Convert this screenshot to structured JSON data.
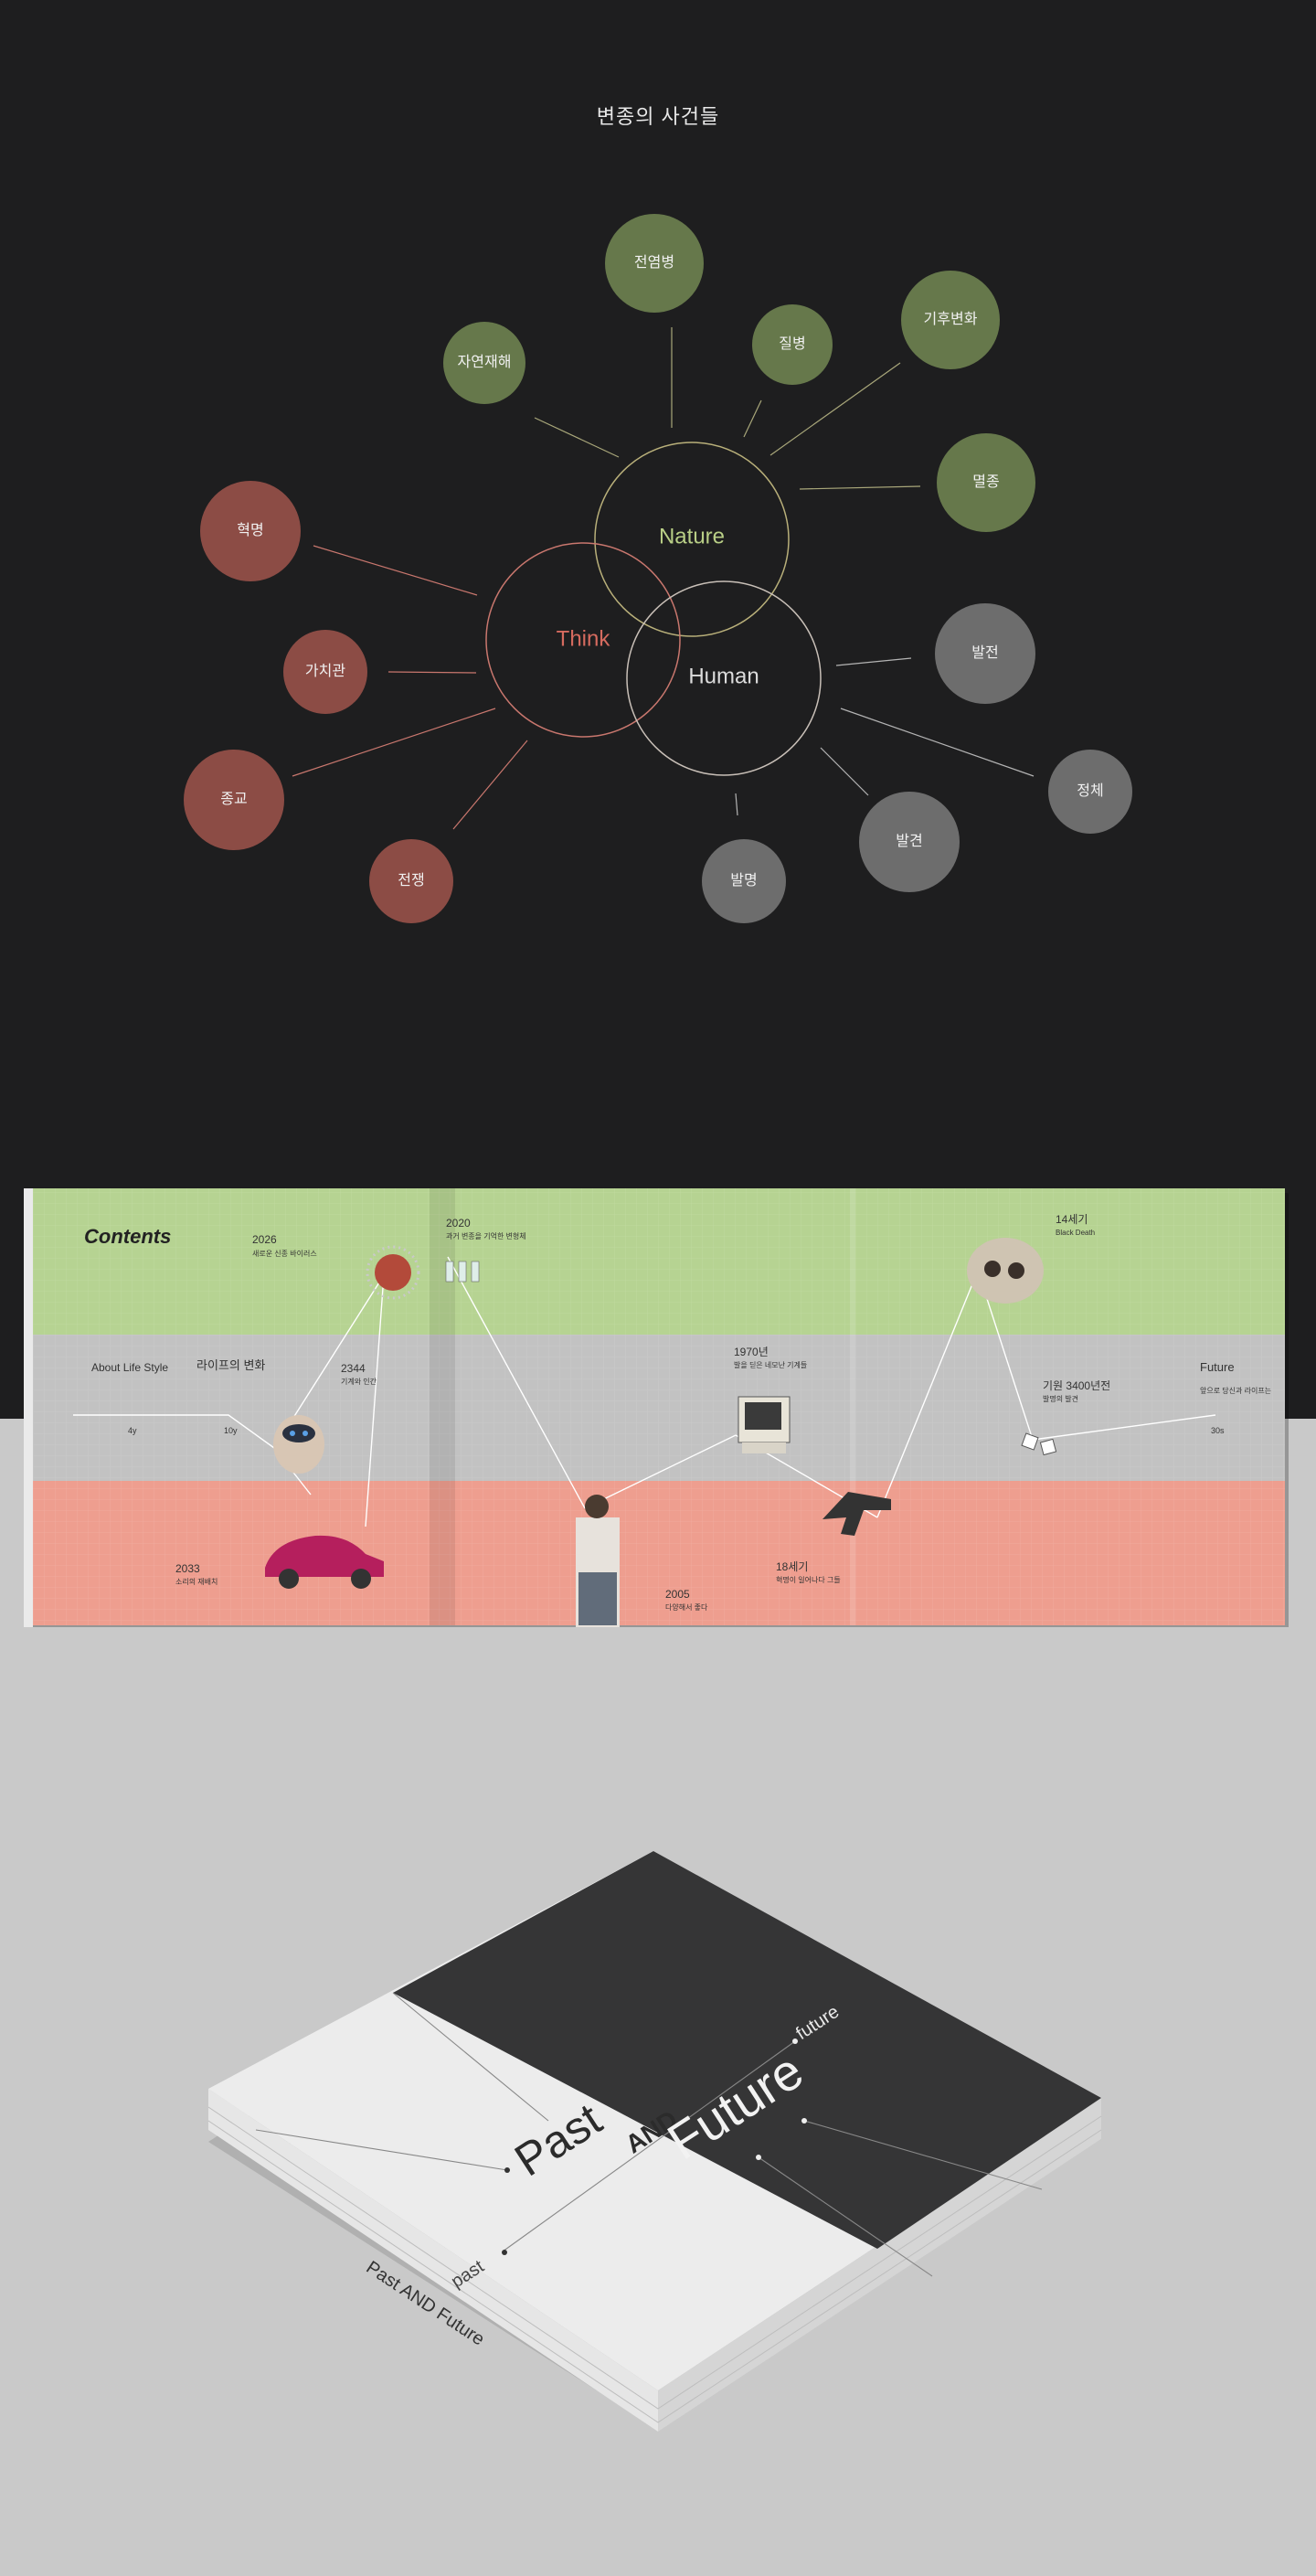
{
  "page": {
    "title": "변종의 사건들"
  },
  "diagram": {
    "venn": [
      {
        "label": "Nature",
        "color": "#b9cf86",
        "stroke": "#b9b07a"
      },
      {
        "label": "Think",
        "color": "#d66b5f",
        "stroke": "#c9776e"
      },
      {
        "label": "Human",
        "color": "#dcdcdc",
        "stroke": "#c9c0b8"
      }
    ],
    "nature_nodes": [
      "전염병",
      "질병",
      "기후변화",
      "자연재해",
      "멸종"
    ],
    "think_nodes": [
      "혁명",
      "가치관",
      "종교",
      "전쟁"
    ],
    "human_nodes": [
      "발전",
      "정체",
      "발견",
      "발명"
    ],
    "colors": {
      "nature": "#66784b",
      "think": "#8c4c45",
      "human": "#6d6d6d",
      "background": "#1e1e1f"
    }
  },
  "book_spread": {
    "heading": "Contents",
    "about_label": "About Life Style",
    "change_label": "라이프의 변화",
    "future_label": "Future",
    "future_sub": "앞으로 당신과 라이프는",
    "events": [
      {
        "year": "2026",
        "text": "새로운 신종 바이러스"
      },
      {
        "year": "2020",
        "text": "과거 변종을 기억한 변형체"
      },
      {
        "year": "2344",
        "text": "기계와 인간"
      },
      {
        "year": "1970년",
        "text": "발을 딛은 네모난 기계들"
      },
      {
        "year": "14세기",
        "text": "Black Death"
      },
      {
        "year": "기원 3400년전",
        "text": "발명의 발견"
      },
      {
        "year": "2033",
        "text": "소리의 재배치"
      },
      {
        "year": "2005",
        "text": "다양해서 좋다"
      },
      {
        "year": "18세기",
        "text": "혁명이 일어나다 그들"
      }
    ],
    "axis": {
      "start": "4y",
      "mid": "10y",
      "end": "30s"
    },
    "colors": {
      "green": "#b6d392",
      "gray": "#c2c2c2",
      "pink": "#ee9e8f"
    }
  },
  "cover": {
    "title_word_1": "Past",
    "title_and": "AND",
    "title_word_2": "Future",
    "past_label": "past",
    "future_label": "future",
    "spine_text": "Past AND Future",
    "colors": {
      "dark": "#353536",
      "light": "#ececec"
    }
  }
}
